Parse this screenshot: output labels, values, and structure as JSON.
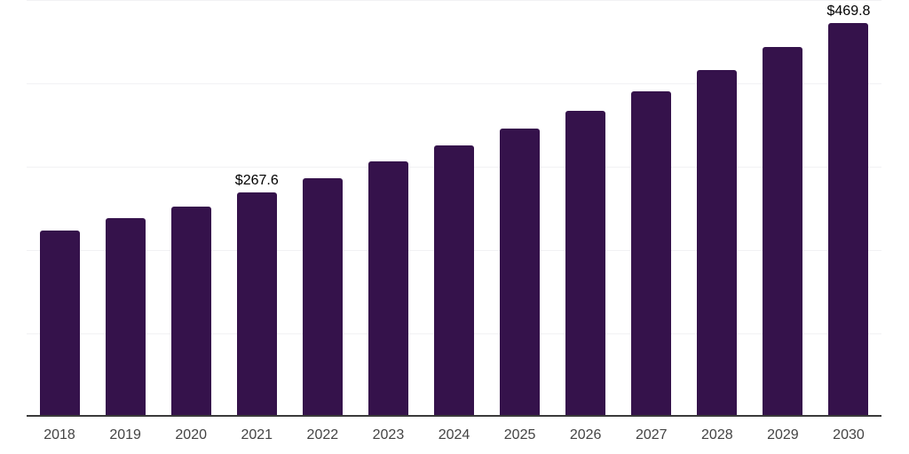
{
  "chart_data": {
    "type": "bar",
    "categories": [
      "2018",
      "2019",
      "2020",
      "2021",
      "2022",
      "2023",
      "2024",
      "2025",
      "2026",
      "2027",
      "2028",
      "2029",
      "2030"
    ],
    "values": [
      221.3,
      236.2,
      250.0,
      267.6,
      284.0,
      304.3,
      323.4,
      343.6,
      365.2,
      388.0,
      413.8,
      441.8,
      469.8
    ],
    "data_labels": {
      "2021": "$267.6",
      "2030": "$469.8"
    },
    "title": "",
    "xlabel": "",
    "ylabel": "",
    "ylim": [
      0,
      500
    ],
    "gridline_interval": 100,
    "grid": true,
    "legend": false,
    "y_tick_labels_visible": false,
    "value_prefix": "$",
    "colors": {
      "bar": "#35124b",
      "gridline": "#f2f2f4",
      "axis_line": "#3a3a3a",
      "data_label_text": "#000000",
      "x_tick_text": "#444444",
      "background": "#ffffff"
    }
  }
}
